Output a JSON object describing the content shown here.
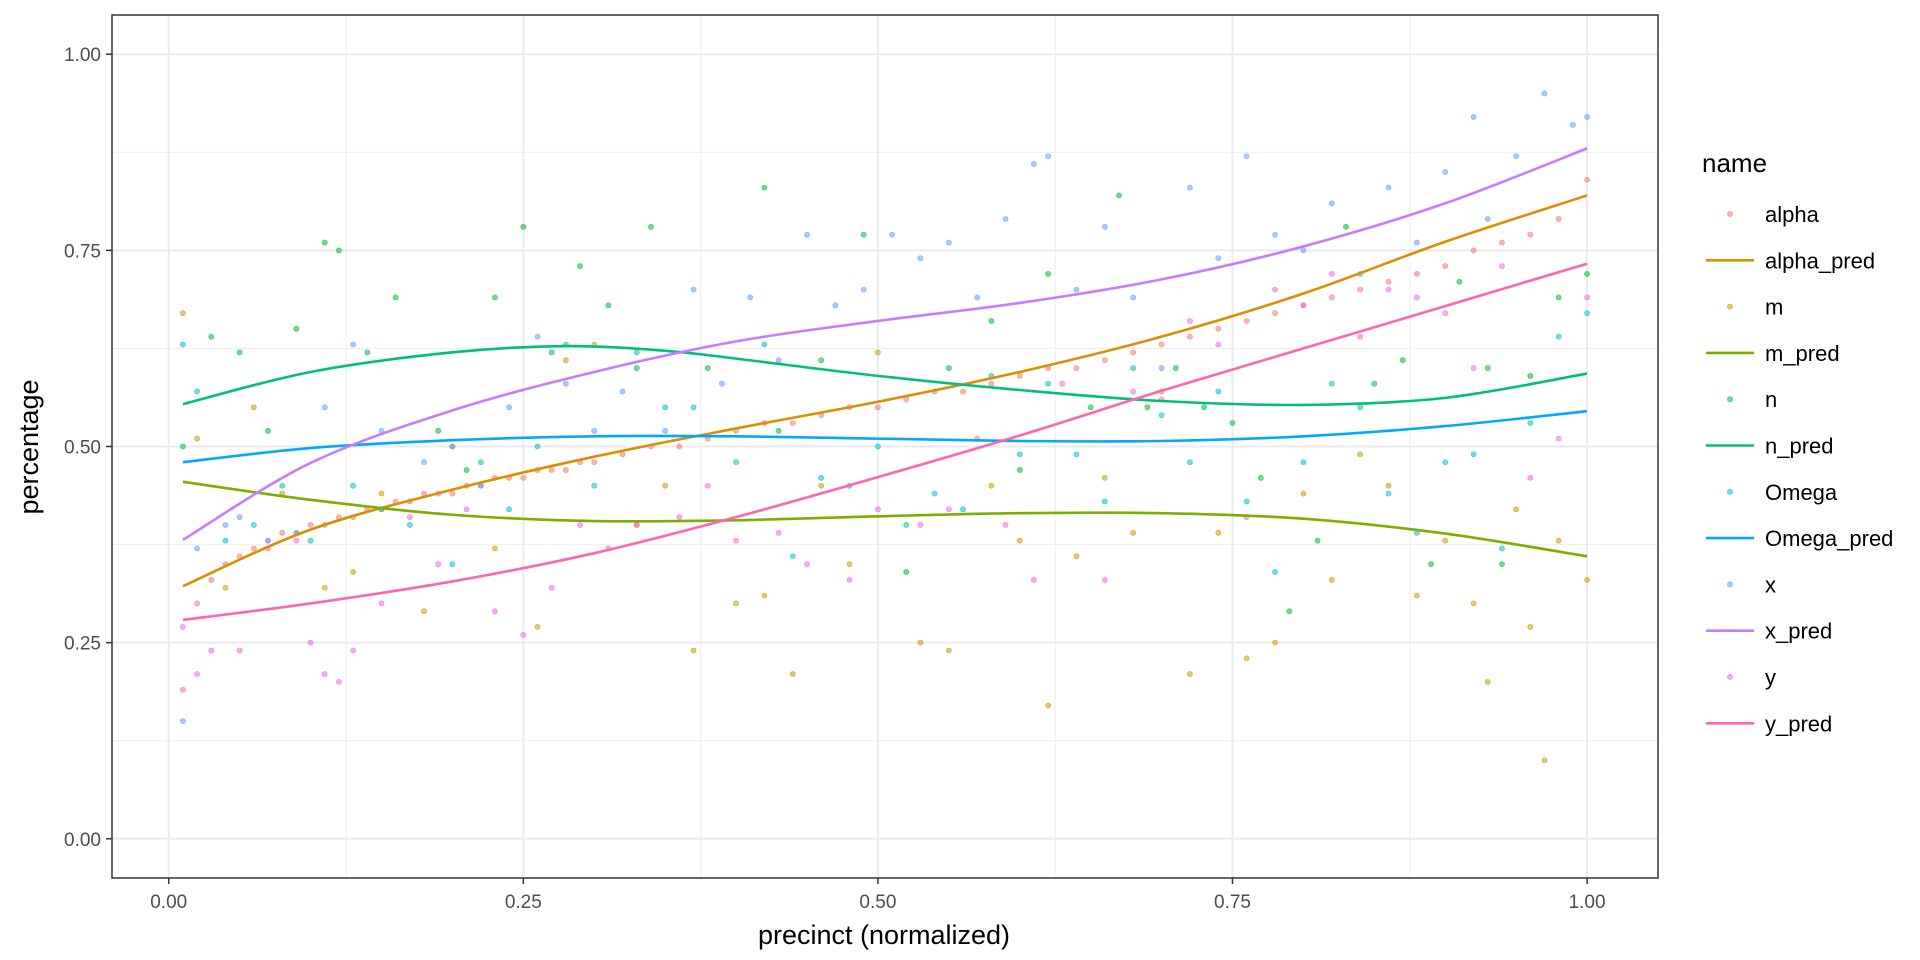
{
  "chart_data": {
    "type": "scatter",
    "xlabel": "precinct (normalized)",
    "ylabel": "percentage",
    "xlim": [
      -0.04,
      1.05
    ],
    "ylim": [
      -0.05,
      1.05
    ],
    "x_ticks": [
      0,
      0.25,
      0.5,
      0.75,
      1
    ],
    "x_tick_labels": [
      "0.00",
      "0.25",
      "0.50",
      "0.75",
      "1.00"
    ],
    "y_ticks": [
      0,
      0.25,
      0.5,
      0.75,
      1
    ],
    "y_tick_labels": [
      "0.00",
      "0.25",
      "0.50",
      "0.75",
      "1.00"
    ],
    "grid": true,
    "legend": {
      "title": "name",
      "position": "right",
      "entries": [
        {
          "label": "alpha",
          "kind": "point",
          "color": "#F8766D"
        },
        {
          "label": "alpha_pred",
          "kind": "line",
          "color": "#D89000"
        },
        {
          "label": "m",
          "kind": "point",
          "color": "#C49A00"
        },
        {
          "label": "m_pred",
          "kind": "line",
          "color": "#7CAE00"
        },
        {
          "label": "n",
          "kind": "point",
          "color": "#00BA38"
        },
        {
          "label": "n_pred",
          "kind": "line",
          "color": "#00BF7D"
        },
        {
          "label": "Omega",
          "kind": "point",
          "color": "#00BFC4"
        },
        {
          "label": "Omega_pred",
          "kind": "line",
          "color": "#00A9FF"
        },
        {
          "label": "x",
          "kind": "point",
          "color": "#619CFF"
        },
        {
          "label": "x_pred",
          "kind": "line",
          "color": "#C77CFF"
        },
        {
          "label": "y",
          "kind": "point",
          "color": "#F564E3"
        },
        {
          "label": "y_pred",
          "kind": "line",
          "color": "#FF64B0"
        }
      ]
    },
    "point_series": [
      {
        "name": "alpha",
        "color": "#F8766D",
        "x": [
          0.01,
          0.02,
          0.03,
          0.04,
          0.05,
          0.06,
          0.07,
          0.08,
          0.09,
          0.1,
          0.11,
          0.12,
          0.13,
          0.14,
          0.15,
          0.16,
          0.17,
          0.18,
          0.19,
          0.2,
          0.21,
          0.22,
          0.23,
          0.24,
          0.25,
          0.26,
          0.27,
          0.28,
          0.29,
          0.3,
          0.32,
          0.34,
          0.36,
          0.38,
          0.4,
          0.42,
          0.44,
          0.46,
          0.48,
          0.5,
          0.52,
          0.54,
          0.56,
          0.58,
          0.6,
          0.62,
          0.64,
          0.66,
          0.68,
          0.7,
          0.72,
          0.74,
          0.76,
          0.78,
          0.8,
          0.82,
          0.84,
          0.86,
          0.88,
          0.9,
          0.92,
          0.94,
          0.96,
          0.98,
          1.0
        ],
        "y": [
          0.19,
          0.3,
          0.33,
          0.35,
          0.36,
          0.37,
          0.38,
          0.39,
          0.39,
          0.4,
          0.4,
          0.41,
          0.41,
          0.42,
          0.42,
          0.43,
          0.43,
          0.44,
          0.44,
          0.44,
          0.45,
          0.45,
          0.46,
          0.46,
          0.46,
          0.47,
          0.47,
          0.47,
          0.48,
          0.48,
          0.49,
          0.5,
          0.5,
          0.51,
          0.52,
          0.53,
          0.53,
          0.54,
          0.55,
          0.55,
          0.56,
          0.57,
          0.57,
          0.58,
          0.59,
          0.6,
          0.6,
          0.61,
          0.62,
          0.63,
          0.64,
          0.65,
          0.66,
          0.67,
          0.68,
          0.69,
          0.7,
          0.71,
          0.72,
          0.73,
          0.75,
          0.76,
          0.77,
          0.79,
          0.84
        ]
      },
      {
        "name": "m",
        "color": "#C49A00",
        "x": [
          0.01,
          0.02,
          0.04,
          0.06,
          0.08,
          0.11,
          0.13,
          0.15,
          0.18,
          0.2,
          0.23,
          0.26,
          0.28,
          0.3,
          0.33,
          0.35,
          0.37,
          0.4,
          0.42,
          0.44,
          0.46,
          0.48,
          0.5,
          0.53,
          0.55,
          0.58,
          0.6,
          0.62,
          0.64,
          0.66,
          0.68,
          0.7,
          0.72,
          0.74,
          0.76,
          0.78,
          0.8,
          0.82,
          0.84,
          0.86,
          0.88,
          0.9,
          0.92,
          0.93,
          0.95,
          0.96,
          0.97,
          0.98,
          1.0
        ],
        "y": [
          0.67,
          0.51,
          0.32,
          0.55,
          0.44,
          0.32,
          0.34,
          0.44,
          0.29,
          0.5,
          0.37,
          0.27,
          0.61,
          0.63,
          0.4,
          0.45,
          0.24,
          0.3,
          0.31,
          0.21,
          0.45,
          0.35,
          0.62,
          0.25,
          0.24,
          0.45,
          0.38,
          0.17,
          0.36,
          0.46,
          0.39,
          0.57,
          0.21,
          0.39,
          0.23,
          0.25,
          0.44,
          0.33,
          0.49,
          0.45,
          0.31,
          0.38,
          0.3,
          0.2,
          0.42,
          0.27,
          0.1,
          0.38,
          0.33
        ]
      },
      {
        "name": "n",
        "color": "#00BA38",
        "x": [
          0.01,
          0.03,
          0.05,
          0.07,
          0.09,
          0.11,
          0.12,
          0.14,
          0.16,
          0.19,
          0.21,
          0.23,
          0.25,
          0.27,
          0.29,
          0.31,
          0.33,
          0.34,
          0.38,
          0.42,
          0.43,
          0.46,
          0.49,
          0.52,
          0.55,
          0.58,
          0.6,
          0.62,
          0.65,
          0.67,
          0.69,
          0.71,
          0.73,
          0.75,
          0.77,
          0.79,
          0.81,
          0.83,
          0.85,
          0.87,
          0.89,
          0.91,
          0.93,
          0.94,
          0.96,
          0.98,
          1.0
        ],
        "y": [
          0.5,
          0.64,
          0.62,
          0.52,
          0.65,
          0.76,
          0.75,
          0.62,
          0.69,
          0.52,
          0.47,
          0.69,
          0.78,
          0.62,
          0.73,
          0.68,
          0.6,
          0.78,
          0.6,
          0.83,
          0.52,
          0.61,
          0.77,
          0.34,
          0.6,
          0.66,
          0.47,
          0.72,
          0.55,
          0.82,
          0.55,
          0.6,
          0.55,
          0.53,
          0.46,
          0.29,
          0.38,
          0.78,
          0.58,
          0.61,
          0.35,
          0.71,
          0.6,
          0.35,
          0.59,
          0.69,
          0.72
        ]
      },
      {
        "name": "Omega",
        "color": "#00BFC4",
        "x": [
          0.01,
          0.02,
          0.04,
          0.06,
          0.08,
          0.1,
          0.13,
          0.15,
          0.17,
          0.2,
          0.22,
          0.24,
          0.26,
          0.28,
          0.3,
          0.33,
          0.35,
          0.37,
          0.4,
          0.42,
          0.44,
          0.46,
          0.48,
          0.5,
          0.52,
          0.54,
          0.56,
          0.58,
          0.6,
          0.62,
          0.64,
          0.66,
          0.68,
          0.7,
          0.72,
          0.74,
          0.76,
          0.78,
          0.8,
          0.82,
          0.84,
          0.86,
          0.88,
          0.9,
          0.92,
          0.94,
          0.96,
          0.98,
          1.0
        ],
        "y": [
          0.63,
          0.57,
          0.38,
          0.4,
          0.45,
          0.38,
          0.45,
          0.42,
          0.4,
          0.35,
          0.48,
          0.42,
          0.5,
          0.63,
          0.45,
          0.62,
          0.55,
          0.55,
          0.48,
          0.63,
          0.36,
          0.46,
          0.45,
          0.5,
          0.4,
          0.44,
          0.42,
          0.59,
          0.49,
          0.58,
          0.49,
          0.43,
          0.6,
          0.54,
          0.48,
          0.57,
          0.43,
          0.34,
          0.48,
          0.58,
          0.55,
          0.44,
          0.39,
          0.48,
          0.49,
          0.37,
          0.53,
          0.64,
          0.67
        ]
      },
      {
        "name": "x",
        "color": "#619CFF",
        "x": [
          0.01,
          0.02,
          0.04,
          0.05,
          0.07,
          0.09,
          0.11,
          0.13,
          0.15,
          0.18,
          0.2,
          0.22,
          0.24,
          0.26,
          0.28,
          0.3,
          0.32,
          0.35,
          0.37,
          0.39,
          0.41,
          0.43,
          0.45,
          0.47,
          0.49,
          0.51,
          0.53,
          0.55,
          0.57,
          0.59,
          0.61,
          0.62,
          0.64,
          0.66,
          0.68,
          0.7,
          0.72,
          0.74,
          0.76,
          0.78,
          0.8,
          0.82,
          0.84,
          0.86,
          0.88,
          0.9,
          0.92,
          0.93,
          0.95,
          0.97,
          0.99,
          1.0
        ],
        "y": [
          0.15,
          0.37,
          0.4,
          0.41,
          0.38,
          0.39,
          0.55,
          0.63,
          0.52,
          0.48,
          0.5,
          0.45,
          0.55,
          0.64,
          0.58,
          0.52,
          0.57,
          0.52,
          0.7,
          0.58,
          0.69,
          0.61,
          0.77,
          0.68,
          0.7,
          0.77,
          0.74,
          0.76,
          0.69,
          0.79,
          0.86,
          0.87,
          0.7,
          0.78,
          0.69,
          0.6,
          0.83,
          0.74,
          0.87,
          0.77,
          0.75,
          0.81,
          0.72,
          0.83,
          0.76,
          0.85,
          0.92,
          0.79,
          0.87,
          0.95,
          0.91,
          0.92
        ]
      },
      {
        "name": "y",
        "color": "#F564E3",
        "x": [
          0.01,
          0.02,
          0.03,
          0.05,
          0.07,
          0.09,
          0.1,
          0.11,
          0.12,
          0.13,
          0.15,
          0.17,
          0.19,
          0.21,
          0.23,
          0.25,
          0.27,
          0.29,
          0.31,
          0.33,
          0.36,
          0.38,
          0.4,
          0.43,
          0.45,
          0.48,
          0.5,
          0.53,
          0.55,
          0.57,
          0.59,
          0.61,
          0.63,
          0.66,
          0.68,
          0.7,
          0.72,
          0.74,
          0.76,
          0.78,
          0.8,
          0.82,
          0.84,
          0.86,
          0.88,
          0.9,
          0.92,
          0.94,
          0.96,
          0.98,
          1.0
        ],
        "y": [
          0.27,
          0.21,
          0.24,
          0.24,
          0.37,
          0.38,
          0.25,
          0.21,
          0.2,
          0.24,
          0.3,
          0.41,
          0.35,
          0.42,
          0.29,
          0.26,
          0.32,
          0.4,
          0.37,
          0.4,
          0.41,
          0.45,
          0.38,
          0.39,
          0.35,
          0.33,
          0.42,
          0.4,
          0.42,
          0.51,
          0.4,
          0.33,
          0.58,
          0.33,
          0.57,
          0.56,
          0.66,
          0.63,
          0.41,
          0.7,
          0.68,
          0.72,
          0.64,
          0.7,
          0.69,
          0.67,
          0.6,
          0.73,
          0.46,
          0.51,
          0.69
        ]
      }
    ],
    "line_series": [
      {
        "name": "alpha_pred",
        "color": "#D89000",
        "x": [
          0.01,
          0.1,
          0.2,
          0.3,
          0.4,
          0.5,
          0.6,
          0.7,
          0.8,
          0.9,
          1.0
        ],
        "y": [
          0.322,
          0.394,
          0.445,
          0.487,
          0.523,
          0.557,
          0.595,
          0.64,
          0.695,
          0.761,
          0.82
        ]
      },
      {
        "name": "m_pred",
        "color": "#7CAE00",
        "x": [
          0.01,
          0.1,
          0.2,
          0.3,
          0.4,
          0.5,
          0.6,
          0.7,
          0.8,
          0.9,
          1.0
        ],
        "y": [
          0.455,
          0.432,
          0.413,
          0.405,
          0.406,
          0.411,
          0.415,
          0.415,
          0.408,
          0.389,
          0.36
        ]
      },
      {
        "name": "n_pred",
        "color": "#00BF7D",
        "x": [
          0.01,
          0.1,
          0.2,
          0.28,
          0.35,
          0.4,
          0.5,
          0.6,
          0.7,
          0.8,
          0.9,
          1.0
        ],
        "y": [
          0.554,
          0.595,
          0.62,
          0.628,
          0.622,
          0.612,
          0.59,
          0.572,
          0.558,
          0.553,
          0.562,
          0.593
        ]
      },
      {
        "name": "Omega_pred",
        "color": "#00A9FF",
        "x": [
          0.01,
          0.1,
          0.2,
          0.3,
          0.4,
          0.5,
          0.6,
          0.7,
          0.8,
          0.9,
          1.0
        ],
        "y": [
          0.48,
          0.498,
          0.508,
          0.513,
          0.513,
          0.51,
          0.507,
          0.507,
          0.513,
          0.526,
          0.545
        ]
      },
      {
        "name": "x_pred",
        "color": "#C77CFF",
        "x": [
          0.01,
          0.1,
          0.2,
          0.3,
          0.4,
          0.5,
          0.6,
          0.7,
          0.8,
          0.9,
          1.0
        ],
        "y": [
          0.381,
          0.479,
          0.546,
          0.595,
          0.634,
          0.66,
          0.683,
          0.713,
          0.755,
          0.81,
          0.88
        ]
      },
      {
        "name": "y_pred",
        "color": "#FF64B0",
        "x": [
          0.01,
          0.1,
          0.2,
          0.3,
          0.4,
          0.5,
          0.6,
          0.7,
          0.8,
          0.9,
          1.0
        ],
        "y": [
          0.279,
          0.3,
          0.328,
          0.364,
          0.41,
          0.461,
          0.514,
          0.571,
          0.625,
          0.679,
          0.733
        ]
      }
    ]
  }
}
